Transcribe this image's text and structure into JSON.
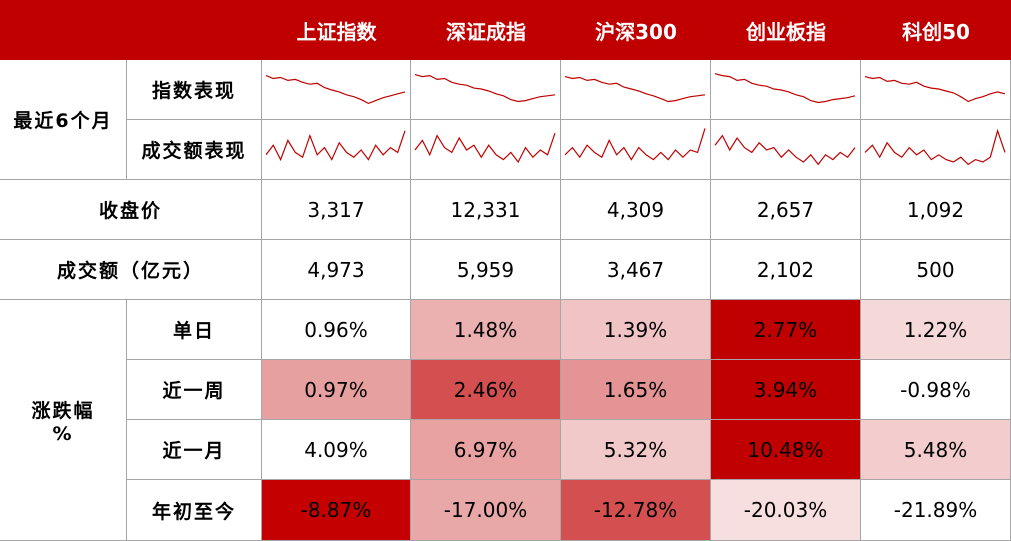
{
  "table": {
    "columns": [
      "上证指数",
      "深证成指",
      "沪深300",
      "创业板指",
      "科创50"
    ],
    "recent": {
      "label": "最近6个月",
      "price_label": "指数表现",
      "volume_label": "成交额表现",
      "line_color": "#c00000",
      "price": [
        [
          80,
          74,
          76,
          70,
          72,
          66,
          62,
          64,
          55,
          50,
          46,
          40,
          36,
          30,
          22,
          28,
          34,
          38,
          42,
          46
        ],
        [
          82,
          78,
          80,
          72,
          74,
          66,
          62,
          60,
          54,
          52,
          48,
          42,
          38,
          30,
          26,
          28,
          32,
          36,
          38,
          40
        ],
        [
          78,
          74,
          76,
          70,
          72,
          66,
          62,
          64,
          56,
          52,
          48,
          42,
          38,
          32,
          26,
          28,
          32,
          36,
          38,
          40
        ],
        [
          84,
          80,
          78,
          70,
          72,
          64,
          60,
          58,
          52,
          50,
          46,
          40,
          36,
          28,
          24,
          26,
          30,
          32,
          34,
          38
        ],
        [
          78,
          74,
          76,
          68,
          70,
          64,
          62,
          66,
          58,
          54,
          52,
          48,
          44,
          36,
          26,
          32,
          36,
          42,
          46,
          42
        ]
      ],
      "volume": [
        [
          40,
          60,
          30,
          70,
          45,
          35,
          80,
          40,
          55,
          30,
          65,
          45,
          35,
          50,
          30,
          60,
          40,
          55,
          45,
          90
        ],
        [
          50,
          70,
          40,
          80,
          55,
          45,
          75,
          50,
          60,
          35,
          60,
          40,
          30,
          45,
          25,
          55,
          35,
          50,
          40,
          85
        ],
        [
          40,
          55,
          35,
          60,
          45,
          35,
          70,
          40,
          55,
          30,
          55,
          40,
          30,
          45,
          30,
          50,
          35,
          50,
          45,
          95
        ],
        [
          60,
          80,
          50,
          75,
          55,
          45,
          65,
          50,
          55,
          35,
          50,
          35,
          25,
          40,
          20,
          40,
          30,
          45,
          35,
          55
        ],
        [
          45,
          60,
          35,
          65,
          45,
          35,
          55,
          40,
          50,
          30,
          40,
          30,
          25,
          35,
          20,
          30,
          25,
          35,
          90,
          45
        ]
      ]
    },
    "close": {
      "label": "收盘价",
      "values": [
        "3,317",
        "12,331",
        "4,309",
        "2,657",
        "1,092"
      ]
    },
    "turnover": {
      "label": "成交额（亿元）",
      "values": [
        "4,973",
        "5,959",
        "3,467",
        "2,102",
        "500"
      ]
    },
    "change": {
      "label": "涨跌幅",
      "unit": "%",
      "rows": [
        {
          "label": "单日",
          "cells": [
            {
              "text": "0.96%",
              "color": "#ffffff"
            },
            {
              "text": "1.48%",
              "color": "#ebb0b0"
            },
            {
              "text": "1.39%",
              "color": "#f0c4c4"
            },
            {
              "text": "2.77%",
              "color": "#c00000"
            },
            {
              "text": "1.22%",
              "color": "#f5d8d8"
            }
          ]
        },
        {
          "label": "近一周",
          "cells": [
            {
              "text": "0.97%",
              "color": "#e7a0a0"
            },
            {
              "text": "2.46%",
              "color": "#d45050"
            },
            {
              "text": "1.65%",
              "color": "#e49494"
            },
            {
              "text": "3.94%",
              "color": "#c00000"
            },
            {
              "text": "-0.98%",
              "color": "#ffffff"
            }
          ]
        },
        {
          "label": "近一月",
          "cells": [
            {
              "text": "4.09%",
              "color": "#ffffff"
            },
            {
              "text": "6.97%",
              "color": "#e9a2a2"
            },
            {
              "text": "5.32%",
              "color": "#f2c9c9"
            },
            {
              "text": "10.48%",
              "color": "#c00000"
            },
            {
              "text": "5.48%",
              "color": "#f3cdcd"
            }
          ]
        },
        {
          "label": "年初至今",
          "cells": [
            {
              "text": "-8.87%",
              "color": "#c40000"
            },
            {
              "text": "-17.00%",
              "color": "#e8a8a8"
            },
            {
              "text": "-12.78%",
              "color": "#d45050"
            },
            {
              "text": "-20.03%",
              "color": "#f7dfdf"
            },
            {
              "text": "-21.89%",
              "color": "#ffffff"
            }
          ]
        }
      ]
    }
  }
}
